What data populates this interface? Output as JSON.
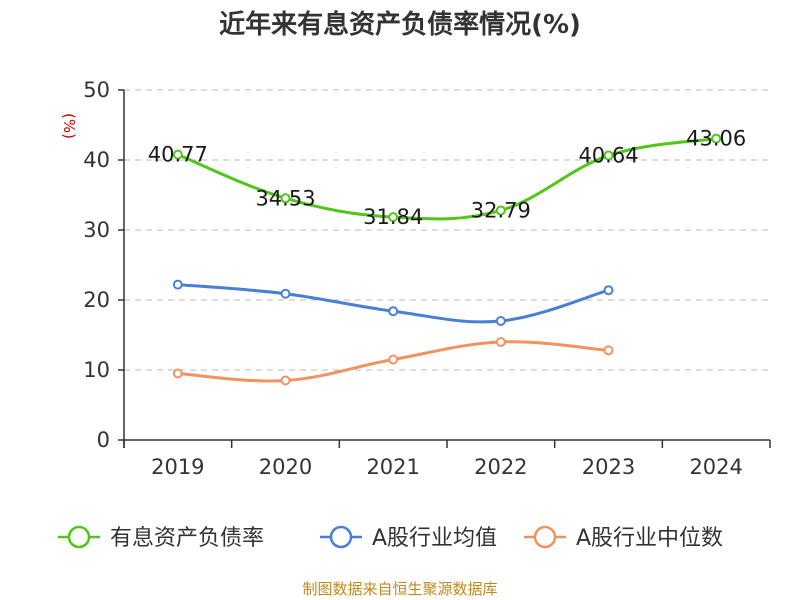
{
  "title": "近年来有息资产负债率情况(%)",
  "source": "制图数据来自恒生聚源数据库",
  "chart_data": {
    "type": "line",
    "title": "近年来有息资产负债率情况(%)",
    "ylabel": "(%)",
    "xlabel": "",
    "categories": [
      "2019",
      "2020",
      "2021",
      "2022",
      "2023",
      "2024"
    ],
    "ylim": [
      0,
      50
    ],
    "yticks": [
      0,
      10,
      20,
      30,
      40,
      50
    ],
    "grid": true,
    "legend_position": "bottom",
    "series": [
      {
        "name": "有息资产负债率",
        "color": "#52c41a",
        "values": [
          40.77,
          34.53,
          31.84,
          32.79,
          40.64,
          43.06
        ],
        "labels": [
          "40.77",
          "34.53",
          "31.84",
          "32.79",
          "40.64",
          "43.06"
        ]
      },
      {
        "name": "A股行业均值",
        "color": "#4a7fd6",
        "values": [
          22.2,
          20.9,
          18.4,
          17.0,
          21.4,
          null
        ]
      },
      {
        "name": "A股行业中位数",
        "color": "#f39160",
        "values": [
          9.5,
          8.5,
          11.5,
          14.0,
          12.8,
          null
        ]
      }
    ]
  }
}
